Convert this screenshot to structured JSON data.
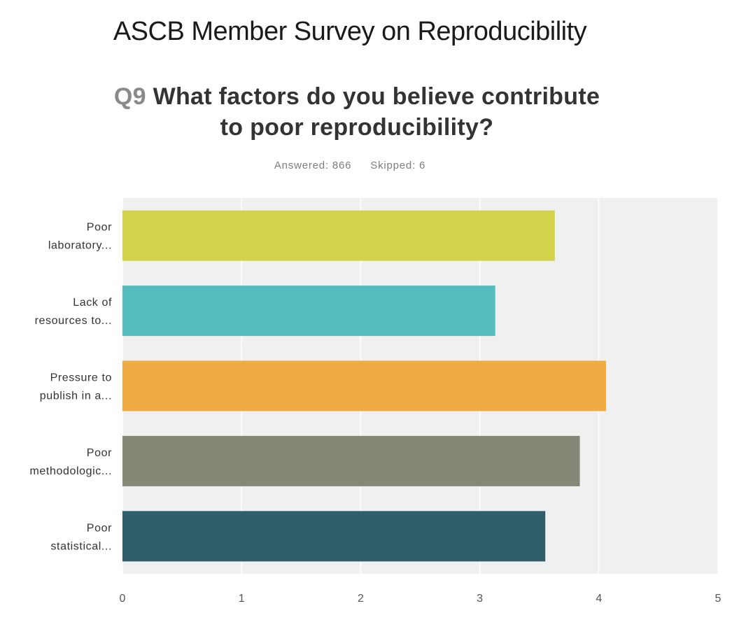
{
  "page_title": "ASCB Member Survey on Reproducibility",
  "question": {
    "number": "Q9",
    "text_line1": "What factors do you believe contribute",
    "text_line2": "to poor reproducibility?"
  },
  "stats": {
    "answered": "Answered: 866",
    "skipped": "Skipped: 6"
  },
  "colors": {
    "plot_background": "#f0f0f0",
    "gridline": "#ffffff",
    "tick_text": "#555555",
    "label_text": "#333333"
  },
  "chart_data": {
    "type": "bar",
    "orientation": "horizontal",
    "title": "",
    "xlabel": "",
    "ylabel": "",
    "xlim": [
      0,
      5
    ],
    "xticks": [
      0,
      1,
      2,
      3,
      4,
      5
    ],
    "grid": true,
    "legend": "none",
    "categories": [
      [
        "Poor",
        "laboratory..."
      ],
      [
        "Lack of",
        "resources to..."
      ],
      [
        "Pressure to",
        "publish in a..."
      ],
      [
        "Poor",
        "methodologic..."
      ],
      [
        "Poor",
        "statistical..."
      ]
    ],
    "values": [
      3.63,
      3.13,
      4.06,
      3.84,
      3.55
    ],
    "bar_colors": [
      "#d2d34a",
      "#55bdbd",
      "#f0ab45",
      "#878778",
      "#2f5e6a"
    ]
  }
}
